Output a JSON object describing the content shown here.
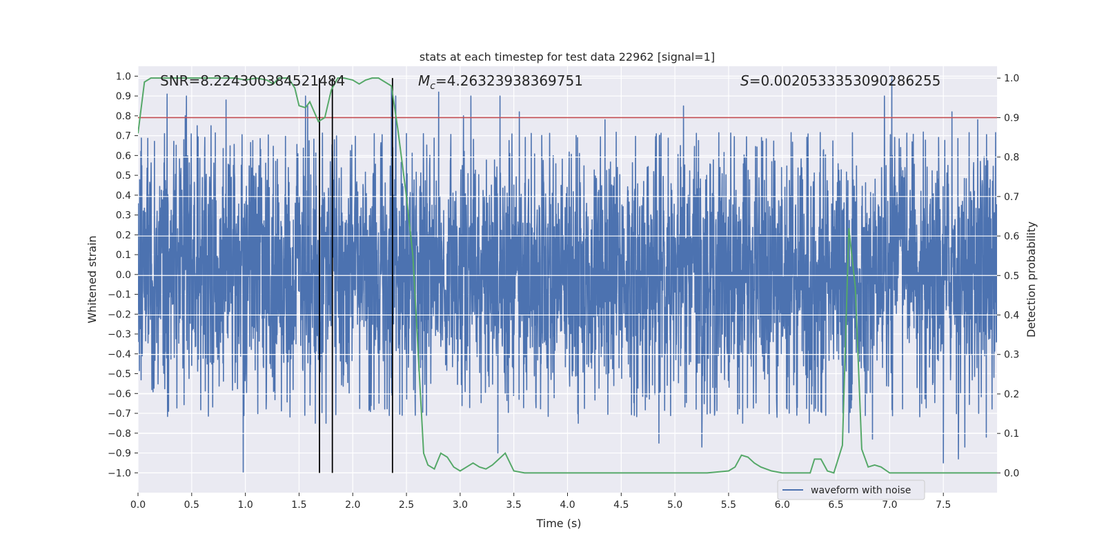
{
  "chart_data": {
    "type": "line",
    "title": "stats at each timestep for test data 22962 [signal=1]",
    "xlabel": "Time (s)",
    "ylabel_left": "Whitened strain",
    "ylabel_right": "Detection probability",
    "xlim": [
      0,
      8
    ],
    "ylim_left": [
      -1.1,
      1.05
    ],
    "ylim_right": [
      -0.05,
      1.03
    ],
    "x_ticks": [
      0.0,
      0.5,
      1.0,
      1.5,
      2.0,
      2.5,
      3.0,
      3.5,
      4.0,
      4.5,
      5.0,
      5.5,
      6.0,
      6.5,
      7.0,
      7.5
    ],
    "x_tick_labels": [
      "0.0",
      "0.5",
      "1.0",
      "1.5",
      "2.0",
      "2.5",
      "3.0",
      "3.5",
      "4.0",
      "4.5",
      "5.0",
      "5.5",
      "6.0",
      "6.5",
      "7.0",
      "7.5"
    ],
    "y_left_ticks": [
      1.0,
      0.9,
      0.8,
      0.7,
      0.6,
      0.5,
      0.4,
      0.3,
      0.2,
      0.1,
      0.0,
      -0.1,
      -0.2,
      -0.3,
      -0.4,
      -0.5,
      -0.6,
      -0.7,
      -0.8,
      -0.9,
      -1.0
    ],
    "y_left_tick_labels": [
      "1.0",
      "0.9",
      "0.8",
      "0.7",
      "0.6",
      "0.5",
      "0.4",
      "0.3",
      "0.2",
      "0.1",
      "0.0",
      "−0.1",
      "−0.2",
      "−0.3",
      "−0.4",
      "−0.5",
      "−0.6",
      "−0.7",
      "−0.8",
      "−0.9",
      "−1.0"
    ],
    "y_right_ticks": [
      1.0,
      0.9,
      0.8,
      0.7,
      0.6,
      0.5,
      0.4,
      0.3,
      0.2,
      0.1,
      0.0
    ],
    "y_right_tick_labels": [
      "1.0",
      "0.9",
      "0.8",
      "0.7",
      "0.6",
      "0.5",
      "0.4",
      "0.3",
      "0.2",
      "0.1",
      "0.0"
    ],
    "grid": true,
    "annotations": {
      "snr": "SNR=8.224300384521484",
      "mc_symbol": "M",
      "mc_subscript": "c",
      "mc_value": "=4.26323938369751",
      "s_symbol": "S",
      "s_value": "=0.0020533353090286255"
    },
    "threshold": 0.9,
    "vertical_lines": [
      1.69,
      1.81,
      2.37
    ],
    "series": [
      {
        "name": "waveform with noise",
        "color": "#4c72b0",
        "axis": "left",
        "kind": "noise",
        "duration": 8.0,
        "typical_amplitude": 0.45,
        "peak_extremes": [
          [
            0.27,
            0.91
          ],
          [
            0.44,
            0.8
          ],
          [
            0.45,
            0.9
          ],
          [
            0.55,
            0.75
          ],
          [
            0.62,
            0.6
          ],
          [
            0.68,
            0.75
          ],
          [
            0.82,
            0.88
          ],
          [
            0.98,
            -1.0
          ],
          [
            1.56,
            0.9
          ],
          [
            1.58,
            0.85
          ],
          [
            1.65,
            -0.75
          ],
          [
            1.75,
            -0.75
          ],
          [
            2.36,
            0.95
          ],
          [
            2.4,
            0.9
          ],
          [
            2.8,
            0.92
          ],
          [
            3.03,
            0.8
          ],
          [
            3.1,
            0.9
          ],
          [
            3.35,
            -0.9
          ],
          [
            3.37,
            0.9
          ],
          [
            3.55,
            0.82
          ],
          [
            4.1,
            -0.75
          ],
          [
            4.35,
            0.78
          ],
          [
            4.85,
            -0.85
          ],
          [
            5.08,
            0.85
          ],
          [
            5.25,
            -0.87
          ],
          [
            5.63,
            -0.75
          ],
          [
            5.95,
            -0.72
          ],
          [
            6.25,
            -0.75
          ],
          [
            6.62,
            -0.8
          ],
          [
            6.84,
            -0.83
          ],
          [
            6.95,
            0.9
          ],
          [
            7.02,
            1.0
          ],
          [
            7.5,
            -0.95
          ],
          [
            7.58,
            0.82
          ],
          [
            7.64,
            -0.93
          ],
          [
            7.7,
            -0.87
          ],
          [
            7.82,
            0.78
          ],
          [
            7.9,
            -0.82
          ]
        ]
      },
      {
        "name": "",
        "color": "#55a868",
        "axis": "right",
        "x": [
          0.0,
          0.06,
          0.12,
          0.2,
          0.3,
          0.4,
          0.5,
          0.6,
          0.7,
          0.8,
          0.9,
          1.0,
          1.1,
          1.2,
          1.26,
          1.31,
          1.4,
          1.46,
          1.5,
          1.56,
          1.6,
          1.68,
          1.74,
          1.8,
          1.86,
          1.92,
          2.0,
          2.06,
          2.12,
          2.18,
          2.24,
          2.3,
          2.36,
          2.42,
          2.5,
          2.56,
          2.6,
          2.66,
          2.7,
          2.76,
          2.82,
          2.88,
          2.94,
          3.0,
          3.06,
          3.12,
          3.18,
          3.24,
          3.3,
          3.36,
          3.42,
          3.5,
          3.6,
          3.8,
          4.0,
          4.2,
          4.5,
          5.0,
          5.3,
          5.5,
          5.56,
          5.62,
          5.68,
          5.74,
          5.8,
          5.9,
          6.0,
          6.1,
          6.2,
          6.26,
          6.3,
          6.36,
          6.42,
          6.48,
          6.56,
          6.62,
          6.68,
          6.74,
          6.8,
          6.86,
          6.92,
          7.0,
          7.3,
          7.6,
          8.0
        ],
        "values": [
          0.86,
          0.99,
          1.0,
          1.0,
          1.0,
          1.0,
          1.0,
          1.0,
          1.0,
          1.0,
          1.0,
          0.995,
          1.0,
          0.995,
          0.985,
          1.0,
          1.0,
          0.975,
          0.93,
          0.925,
          0.94,
          0.89,
          0.9,
          0.97,
          1.0,
          1.0,
          0.995,
          0.985,
          0.995,
          1.0,
          1.0,
          0.99,
          0.98,
          0.87,
          0.7,
          0.55,
          0.35,
          0.05,
          0.02,
          0.01,
          0.05,
          0.04,
          0.015,
          0.005,
          0.015,
          0.025,
          0.015,
          0.01,
          0.02,
          0.035,
          0.05,
          0.005,
          0.0,
          0.0,
          0.0,
          0.0,
          0.0,
          0.0,
          0.0,
          0.005,
          0.015,
          0.045,
          0.04,
          0.025,
          0.015,
          0.005,
          0.0,
          0.0,
          0.0,
          0.0,
          0.035,
          0.035,
          0.005,
          0.0,
          0.07,
          0.62,
          0.47,
          0.06,
          0.015,
          0.02,
          0.015,
          0.0,
          0.0,
          0.0,
          0.0
        ]
      }
    ],
    "legend": {
      "placement": "bottom-right",
      "entries": [
        "waveform with noise"
      ]
    }
  }
}
